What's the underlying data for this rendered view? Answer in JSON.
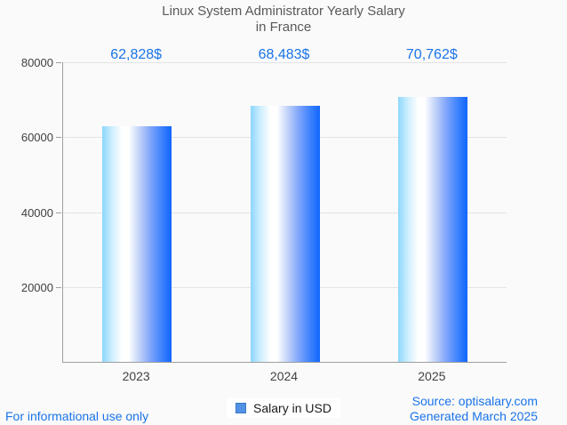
{
  "title": {
    "line1": "Linux System Administrator Yearly Salary",
    "line2": "in France"
  },
  "chart_data": {
    "type": "bar",
    "categories": [
      "2023",
      "2024",
      "2025"
    ],
    "values": [
      62828,
      68483,
      70762
    ],
    "value_labels": [
      "62,828$",
      "68,483$",
      "70,762$"
    ],
    "series": [
      {
        "name": "Salary in USD",
        "values": [
          62828,
          68483,
          70762
        ]
      }
    ],
    "title": "Linux System Administrator Yearly Salary in France",
    "xlabel": "",
    "ylabel": "",
    "ylim": [
      0,
      80000
    ],
    "yticks": [
      20000,
      40000,
      60000,
      80000
    ],
    "grid": true,
    "legend_position": "bottom"
  },
  "legend": {
    "label": "Salary in USD"
  },
  "footer": {
    "left": "For informational use only",
    "source": "Source: optisalary.com",
    "generated": "Generated March 2025"
  },
  "colors": {
    "value_label": "#1a73e8",
    "footer_text": "#1a73e8",
    "title_text": "#595959",
    "axis": "#9e9e9e",
    "grid": "#e3e3e3",
    "background": "#fafafa",
    "bar_gradient_left": "#8cd7fc",
    "bar_gradient_mid": "#ffffff",
    "bar_gradient_right": "#1166fb",
    "legend_marker": "#5191e6"
  }
}
